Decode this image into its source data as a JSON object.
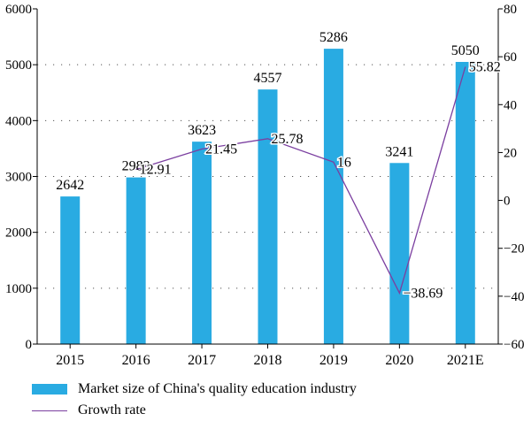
{
  "chart_data": {
    "type": "bar",
    "categories": [
      "2015",
      "2016",
      "2017",
      "2018",
      "2019",
      "2020",
      "2021E"
    ],
    "series": [
      {
        "name": "Market size of China's quality education industry",
        "type": "bar",
        "axis": "left",
        "values": [
          2642,
          2983,
          3623,
          4557,
          5286,
          3241,
          5050
        ],
        "labels": [
          "2642",
          "2983",
          "3623",
          "4557",
          "5286",
          "3241",
          "5050"
        ],
        "color": "#29abe2"
      },
      {
        "name": "Growth rate",
        "type": "line",
        "axis": "right",
        "values": [
          null,
          12.91,
          21.45,
          25.78,
          16,
          -38.69,
          55.82
        ],
        "labels": [
          "",
          "12.91",
          "21.45",
          "25.78",
          "16",
          "−38.69",
          "55.82"
        ],
        "color": "#7b3fa0"
      }
    ],
    "y_left": {
      "min": 0,
      "max": 6000,
      "ticks": [
        0,
        1000,
        2000,
        3000,
        4000,
        5000,
        6000
      ],
      "tick_labels": [
        "0",
        "1000",
        "2000",
        "3000",
        "4000",
        "5000",
        "6000"
      ]
    },
    "y_right": {
      "min": -60,
      "max": 80,
      "ticks": [
        -60,
        -40,
        -20,
        0,
        20,
        40,
        60,
        80
      ],
      "tick_labels": [
        "−60",
        "−40",
        "−20",
        "0",
        "20",
        "40",
        "60",
        "80"
      ]
    },
    "grid": "horizontal dotted",
    "legend_position": "bottom-left"
  }
}
